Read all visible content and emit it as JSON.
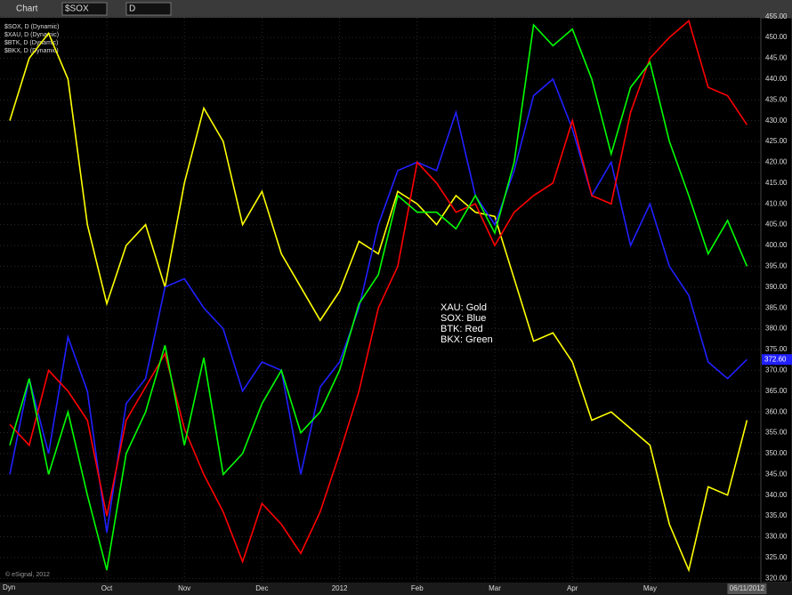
{
  "toolbar": {
    "window": "Chart",
    "symbol": "$SOX",
    "interval": "D",
    "mode": "Dyn"
  },
  "footer": "© eSignal, 2012",
  "chart_data": {
    "type": "line",
    "studies": [
      "$SOX, D (Dynamic)",
      "$XAU, D (Dynamic)",
      "$BTK, D (Dynamic)",
      "$BKX, D (Dynamic)"
    ],
    "annotations": [
      "XAU:  Gold",
      "SOX:  Blue",
      "BTK:  Red",
      "BKX:  Green"
    ],
    "categories": [
      null,
      null,
      null,
      null,
      null,
      "Oct",
      null,
      null,
      null,
      "Nov",
      null,
      null,
      null,
      "Dec",
      null,
      null,
      null,
      "2012",
      null,
      null,
      null,
      "Feb",
      null,
      null,
      null,
      "Mar",
      null,
      null,
      null,
      "Apr",
      null,
      null,
      null,
      "May",
      null,
      null,
      null,
      null,
      "06/11/2012"
    ],
    "series": [
      {
        "name": "XAU",
        "color": "#ffff00",
        "values": [
          430,
          445,
          451,
          440,
          405,
          386,
          400,
          405,
          390,
          415,
          433,
          425,
          405,
          413,
          398,
          390,
          382,
          389,
          401,
          398,
          413,
          410,
          405,
          412,
          408,
          407,
          392,
          377,
          379,
          372,
          358,
          360,
          356,
          352,
          333,
          322,
          342,
          340,
          358
        ]
      },
      {
        "name": "SOX",
        "color": "#2020ff",
        "values": [
          345,
          368,
          350,
          378,
          365,
          331,
          362,
          368,
          390,
          392,
          385,
          380,
          365,
          372,
          370,
          345,
          366,
          372,
          385,
          405,
          418,
          420,
          418,
          432,
          412,
          405,
          418,
          436,
          440,
          428,
          412,
          420,
          400,
          410,
          395,
          388,
          372,
          368,
          372.6
        ]
      },
      {
        "name": "BTK",
        "color": "#ff0000",
        "values": [
          357,
          352,
          370,
          365,
          358,
          335,
          358,
          366,
          374,
          356,
          345,
          336,
          324,
          338,
          333,
          326,
          336,
          350,
          365,
          385,
          395,
          420,
          415,
          408,
          410,
          400,
          408,
          412,
          415,
          430,
          412,
          410,
          432,
          445,
          450,
          454,
          438,
          436,
          429
        ]
      },
      {
        "name": "BKX",
        "color": "#00ff00",
        "values": [
          352,
          368,
          345,
          360,
          340,
          322,
          350,
          360,
          376,
          352,
          373,
          345,
          350,
          362,
          370,
          355,
          360,
          370,
          386,
          393,
          412,
          408,
          408,
          404,
          412,
          403,
          420,
          453,
          448,
          452,
          440,
          422,
          438,
          444,
          425,
          412,
          398,
          406,
          395
        ]
      }
    ],
    "last_price": {
      "value": 372.6,
      "label": "372.60"
    },
    "ylim": [
      319,
      456
    ],
    "yticks": [
      {
        "value": 320,
        "label": "320.00"
      },
      {
        "value": 325,
        "label": "325.00"
      },
      {
        "value": 330,
        "label": "330.00"
      },
      {
        "value": 335,
        "label": "335.00"
      },
      {
        "value": 340,
        "label": "340.00"
      },
      {
        "value": 345,
        "label": "345.00"
      },
      {
        "value": 350,
        "label": "350.00"
      },
      {
        "value": 355,
        "label": "355.00"
      },
      {
        "value": 360,
        "label": "360.00"
      },
      {
        "value": 365,
        "label": "365.00"
      },
      {
        "value": 370,
        "label": "370.00"
      },
      {
        "value": 375,
        "label": "375.00"
      },
      {
        "value": 380,
        "label": "380.00"
      },
      {
        "value": 385,
        "label": "385.00"
      },
      {
        "value": 390,
        "label": "390.00"
      },
      {
        "value": 395,
        "label": "395.00"
      },
      {
        "value": 400,
        "label": "400.00"
      },
      {
        "value": 405,
        "label": "405.00"
      },
      {
        "value": 410,
        "label": "410.00"
      },
      {
        "value": 415,
        "label": "415.00"
      },
      {
        "value": 420,
        "label": "420.00"
      },
      {
        "value": 425,
        "label": "425.00"
      },
      {
        "value": 430,
        "label": "430.00"
      },
      {
        "value": 435,
        "label": "435.00"
      },
      {
        "value": 440,
        "label": "440.00"
      },
      {
        "value": 445,
        "label": "445.00"
      },
      {
        "value": 450,
        "label": "450.00"
      },
      {
        "value": 455,
        "label": "455.00"
      }
    ],
    "grid": true
  }
}
